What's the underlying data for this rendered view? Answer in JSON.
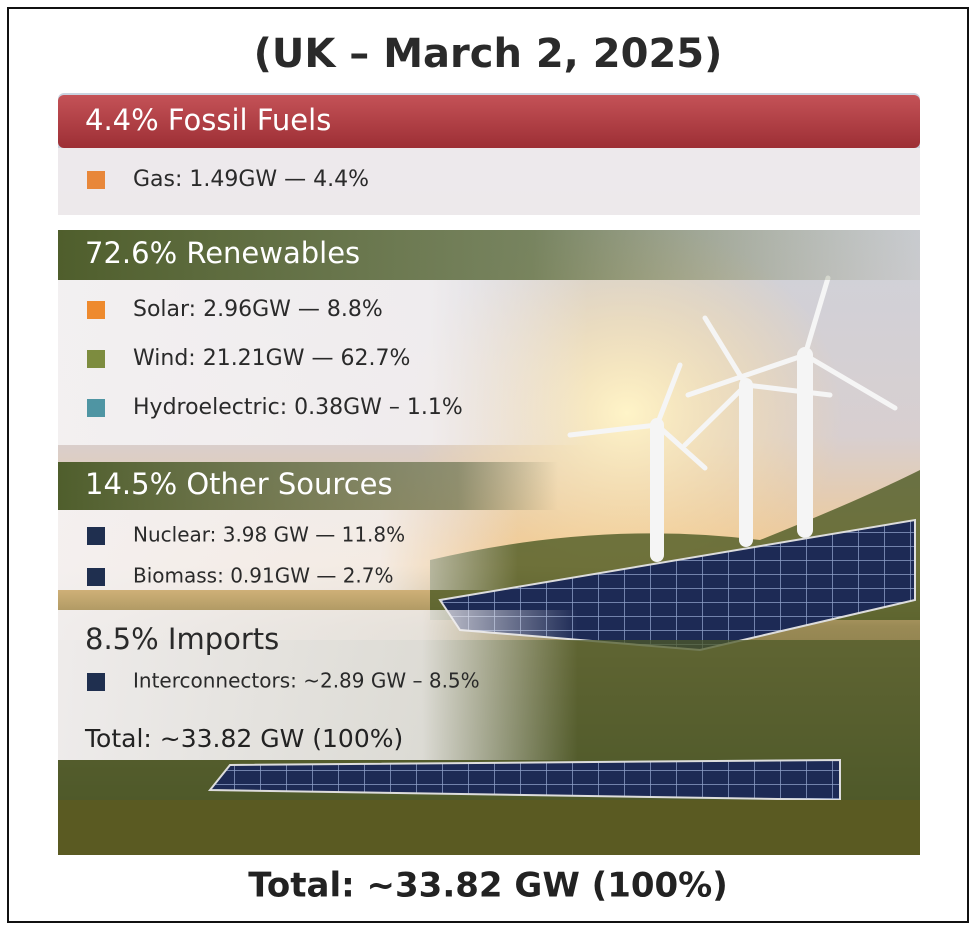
{
  "title": "(UK – March 2, 2025)",
  "sections": [
    {
      "header": "4.4% Fossil Fuels",
      "items": [
        {
          "text": "Gas: 1.49GW — 4.4%",
          "color": "#e8873a"
        }
      ]
    },
    {
      "header": "72.6% Renewables",
      "items": [
        {
          "text": "Solar: 2.96GW — 8.8%",
          "color": "#ee8a2e"
        },
        {
          "text": "Wind: 21.21GW — 62.7%",
          "color": "#7d8c3f"
        },
        {
          "text": "Hydroelectric: 0.38GW – 1.1%",
          "color": "#4f95a3"
        }
      ]
    },
    {
      "header": "14.5% Other Sources",
      "items": [
        {
          "text": "Nuclear: 3.98 GW — 11.8%",
          "color": "#1f2f4f"
        },
        {
          "text": "Biomass: 0.91GW — 2.7%",
          "color": "#1f2f4f"
        }
      ]
    },
    {
      "header": "8.5% Imports",
      "items": [
        {
          "text": "Interconnectors: ~2.89 GW – 8.5%",
          "color": "#1f2f4f"
        }
      ]
    }
  ],
  "panel_total": "Total: ~33.82 GW (100%)",
  "footer_total": "Total: ~33.82 GW (100%)"
}
